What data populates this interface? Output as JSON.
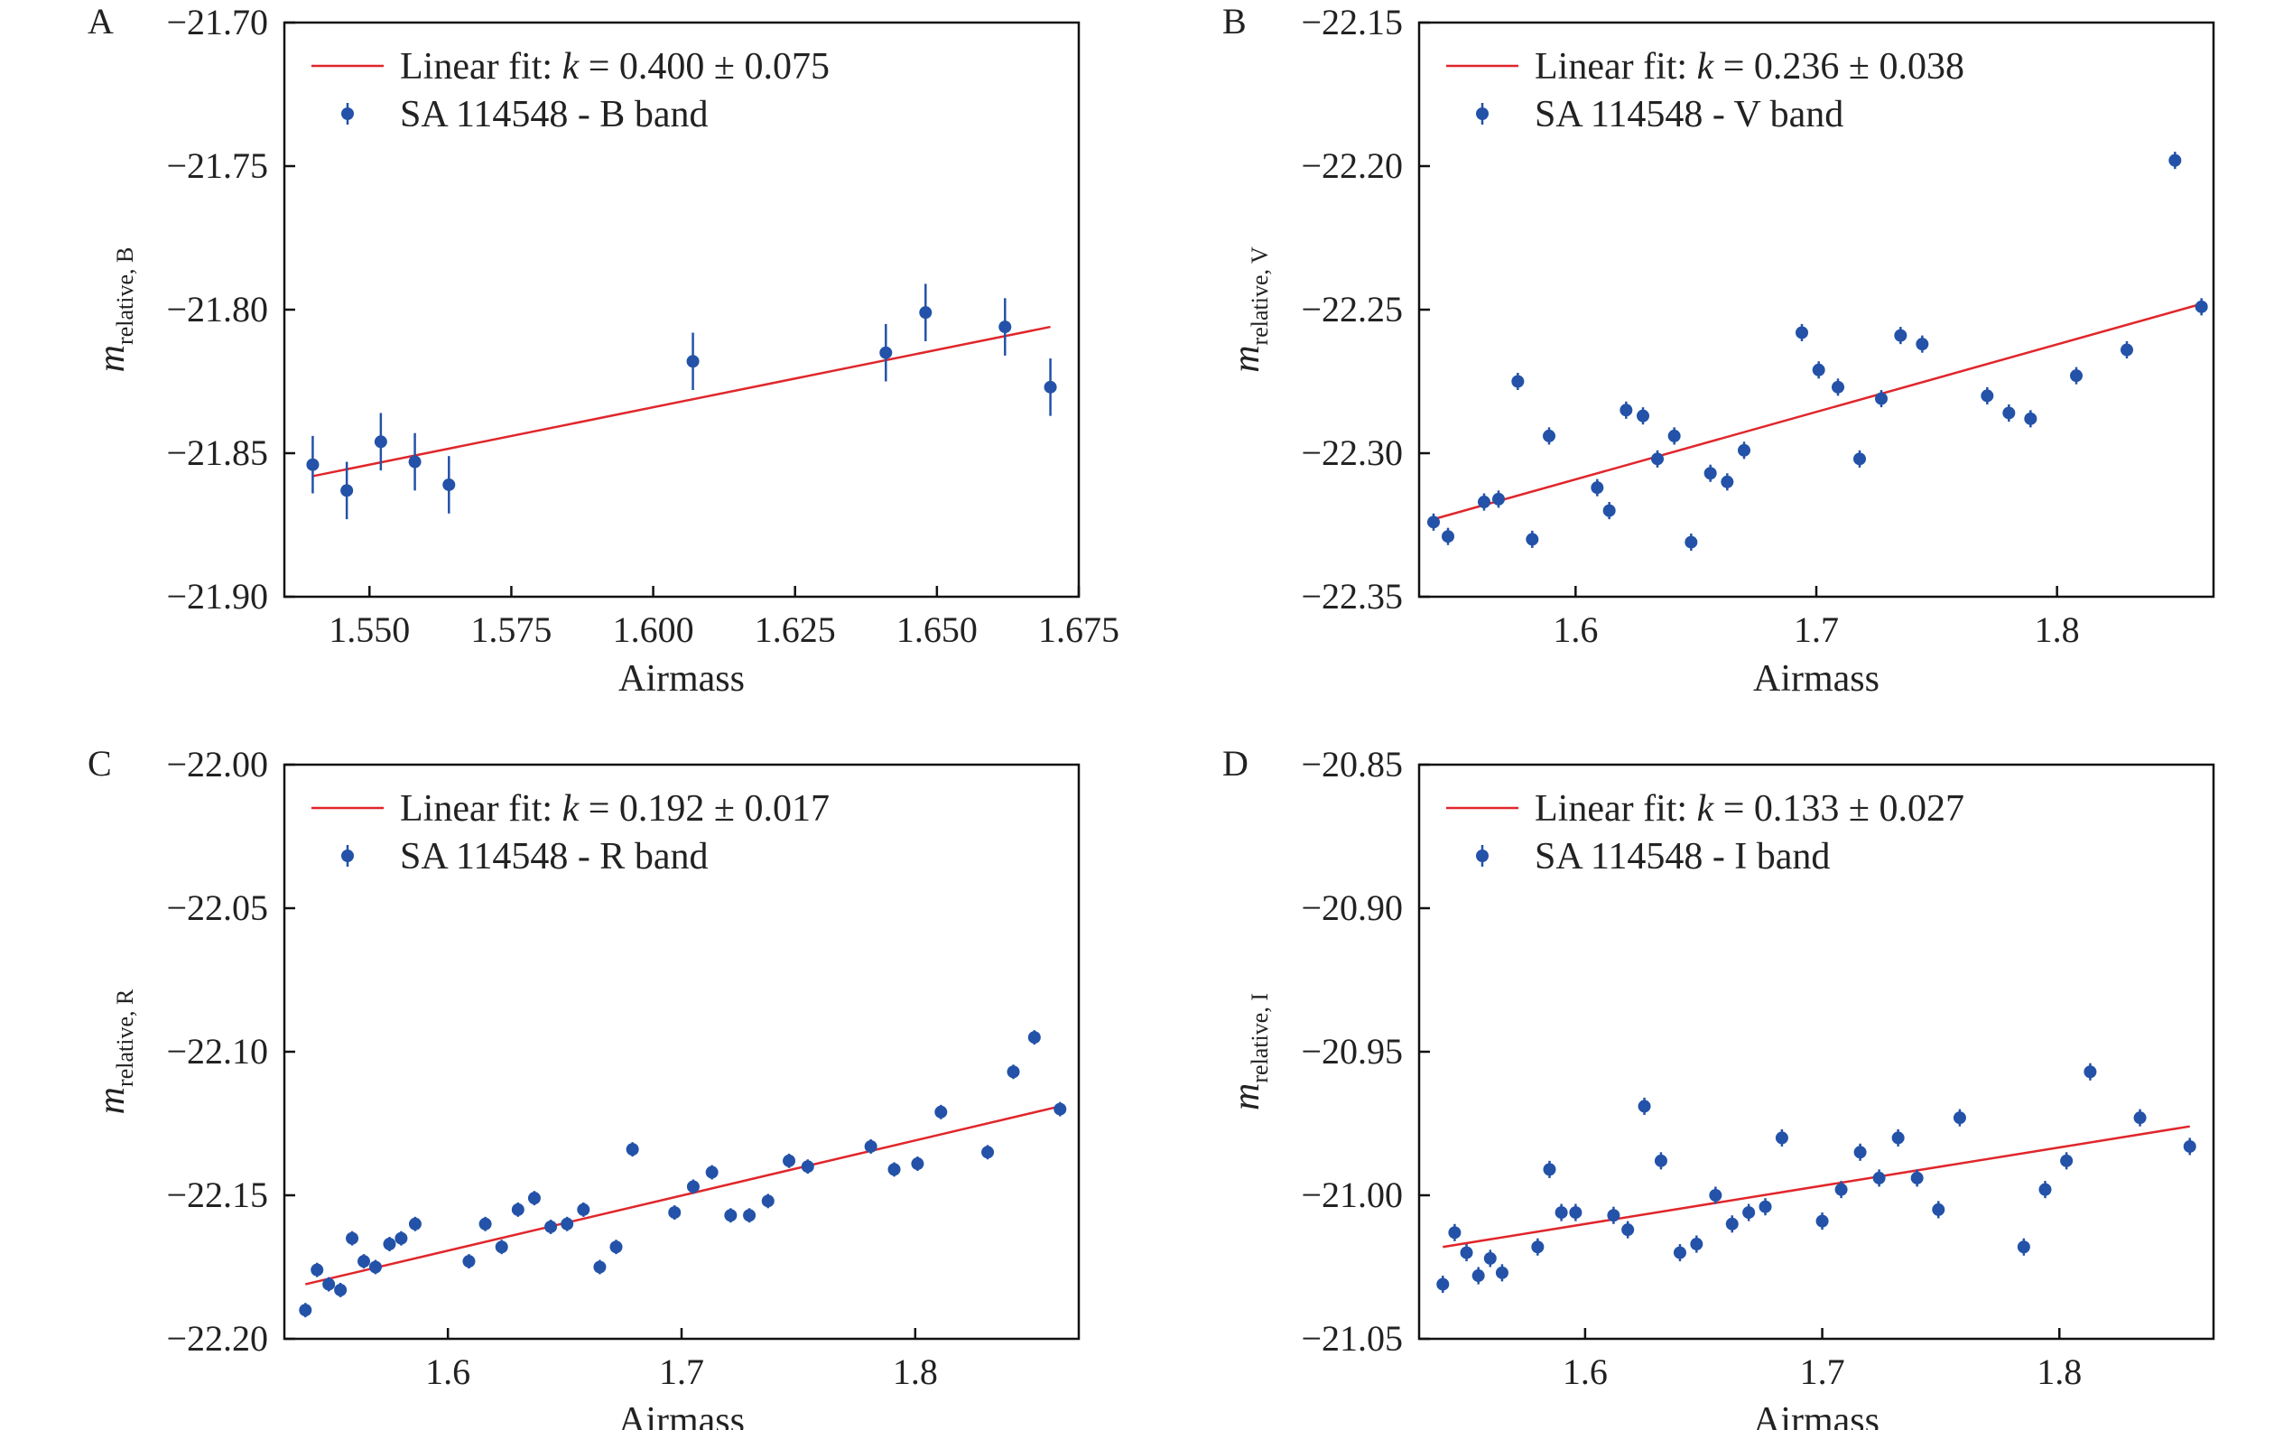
{
  "colors": {
    "points": "#2352a8",
    "fit": "#e0262b",
    "axis": "#111111",
    "text": "#222222"
  },
  "chart_data": [
    {
      "panel": "A",
      "type": "scatter",
      "xlabel": "Airmass",
      "ylabel_main": "m",
      "ylabel_sub": "relative, B",
      "xlim": [
        1.535,
        1.675
      ],
      "ylim": [
        -21.9,
        -21.7
      ],
      "xticks": [
        1.55,
        1.575,
        1.6,
        1.625,
        1.65,
        1.675
      ],
      "xtick_labels": [
        "1.550",
        "1.575",
        "1.600",
        "1.625",
        "1.650",
        "1.675"
      ],
      "yticks": [
        -21.7,
        -21.75,
        -21.8,
        -21.85,
        -21.9
      ],
      "ytick_labels": [
        "−21.70",
        "−21.75",
        "−21.80",
        "−21.85",
        "−21.90"
      ],
      "legend": {
        "fit_prefix": "Linear fit: ",
        "fit_var": "k",
        "fit_value": " = 0.400 ± 0.075",
        "series_label": "SA 114548 - B band",
        "position": "top-left"
      },
      "fit": {
        "slope": 0.4,
        "slope_err": 0.075,
        "x": [
          1.54,
          1.67
        ],
        "y": [
          -21.858,
          -21.806
        ]
      },
      "series": {
        "name": "SA 114548 - B band",
        "x": [
          1.54,
          1.546,
          1.552,
          1.558,
          1.564,
          1.607,
          1.641,
          1.648,
          1.662,
          1.67
        ],
        "y": [
          -21.854,
          -21.863,
          -21.846,
          -21.853,
          -21.861,
          -21.818,
          -21.815,
          -21.801,
          -21.806,
          -21.827
        ],
        "err": [
          0.01,
          0.01,
          0.01,
          0.01,
          0.01,
          0.01,
          0.01,
          0.01,
          0.01,
          0.01
        ]
      }
    },
    {
      "panel": "B",
      "type": "scatter",
      "xlabel": "Airmass",
      "ylabel_main": "m",
      "ylabel_sub": "relative, V",
      "xlim": [
        1.535,
        1.865
      ],
      "ylim": [
        -22.35,
        -22.15
      ],
      "xticks": [
        1.6,
        1.7,
        1.8
      ],
      "xtick_labels": [
        "1.6",
        "1.7",
        "1.8"
      ],
      "yticks": [
        -22.15,
        -22.2,
        -22.25,
        -22.3,
        -22.35
      ],
      "ytick_labels": [
        "−22.15",
        "−22.20",
        "−22.25",
        "−22.30",
        "−22.35"
      ],
      "legend": {
        "fit_prefix": "Linear fit: ",
        "fit_var": "k",
        "fit_value": " = 0.236 ± 0.038",
        "series_label": "SA 114548 - V band",
        "position": "top-left"
      },
      "fit": {
        "slope": 0.236,
        "slope_err": 0.038,
        "x": [
          1.541,
          1.86
        ],
        "y": [
          -22.323,
          -22.248
        ]
      },
      "series": {
        "name": "SA 114548 - V band",
        "x": [
          1.541,
          1.547,
          1.562,
          1.568,
          1.576,
          1.582,
          1.589,
          1.609,
          1.614,
          1.621,
          1.628,
          1.634,
          1.641,
          1.648,
          1.656,
          1.663,
          1.67,
          1.694,
          1.701,
          1.709,
          1.718,
          1.727,
          1.735,
          1.744,
          1.771,
          1.78,
          1.789,
          1.808,
          1.829,
          1.849,
          1.86
        ],
        "y": [
          -22.324,
          -22.329,
          -22.317,
          -22.316,
          -22.275,
          -22.33,
          -22.294,
          -22.312,
          -22.32,
          -22.285,
          -22.287,
          -22.302,
          -22.294,
          -22.331,
          -22.307,
          -22.31,
          -22.299,
          -22.258,
          -22.271,
          -22.277,
          -22.302,
          -22.281,
          -22.259,
          -22.262,
          -22.28,
          -22.286,
          -22.288,
          -22.273,
          -22.264,
          -22.198,
          -22.249
        ],
        "err": [
          0.003,
          0.003,
          0.003,
          0.003,
          0.003,
          0.003,
          0.003,
          0.003,
          0.003,
          0.003,
          0.003,
          0.003,
          0.003,
          0.003,
          0.003,
          0.003,
          0.003,
          0.003,
          0.003,
          0.003,
          0.003,
          0.003,
          0.003,
          0.003,
          0.003,
          0.003,
          0.003,
          0.003,
          0.003,
          0.003,
          0.003
        ]
      }
    },
    {
      "panel": "C",
      "type": "scatter",
      "xlabel": "Airmass",
      "ylabel_main": "m",
      "ylabel_sub": "relative, R",
      "xlim": [
        1.53,
        1.87
      ],
      "ylim": [
        -22.2,
        -22.0
      ],
      "xticks": [
        1.6,
        1.7,
        1.8
      ],
      "xtick_labels": [
        "1.6",
        "1.7",
        "1.8"
      ],
      "yticks": [
        -22.0,
        -22.05,
        -22.1,
        -22.15,
        -22.2
      ],
      "ytick_labels": [
        "−22.00",
        "−22.05",
        "−22.10",
        "−22.15",
        "−22.20"
      ],
      "legend": {
        "fit_prefix": "Linear fit: ",
        "fit_var": "k",
        "fit_value": " = 0.192 ± 0.017",
        "series_label": "SA 114548 - R band",
        "position": "top-left"
      },
      "fit": {
        "slope": 0.192,
        "slope_err": 0.017,
        "x": [
          1.539,
          1.862
        ],
        "y": [
          -22.181,
          -22.119
        ]
      },
      "series": {
        "name": "SA 114548 - R band",
        "x": [
          1.539,
          1.544,
          1.549,
          1.554,
          1.559,
          1.564,
          1.569,
          1.575,
          1.58,
          1.586,
          1.609,
          1.616,
          1.623,
          1.63,
          1.637,
          1.644,
          1.651,
          1.658,
          1.665,
          1.672,
          1.679,
          1.697,
          1.705,
          1.713,
          1.721,
          1.729,
          1.737,
          1.746,
          1.754,
          1.781,
          1.791,
          1.801,
          1.811,
          1.831,
          1.842,
          1.851,
          1.862
        ],
        "y": [
          -22.19,
          -22.176,
          -22.181,
          -22.183,
          -22.165,
          -22.173,
          -22.175,
          -22.167,
          -22.165,
          -22.16,
          -22.173,
          -22.16,
          -22.168,
          -22.155,
          -22.151,
          -22.161,
          -22.16,
          -22.155,
          -22.175,
          -22.168,
          -22.134,
          -22.156,
          -22.147,
          -22.142,
          -22.157,
          -22.157,
          -22.152,
          -22.138,
          -22.14,
          -22.133,
          -22.141,
          -22.139,
          -22.121,
          -22.135,
          -22.107,
          -22.095,
          -22.12
        ],
        "err": [
          0.0025,
          0.0025,
          0.0025,
          0.0025,
          0.0025,
          0.0025,
          0.0025,
          0.0025,
          0.0025,
          0.0025,
          0.0025,
          0.0025,
          0.0025,
          0.0025,
          0.0025,
          0.0025,
          0.0025,
          0.0025,
          0.0025,
          0.0025,
          0.0025,
          0.0025,
          0.0025,
          0.0025,
          0.0025,
          0.0025,
          0.0025,
          0.0025,
          0.0025,
          0.0025,
          0.0025,
          0.0025,
          0.0025,
          0.0025,
          0.0025,
          0.0025,
          0.0025
        ]
      }
    },
    {
      "panel": "D",
      "type": "scatter",
      "xlabel": "Airmass",
      "ylabel_main": "m",
      "ylabel_sub": "relative, I",
      "xlim": [
        1.53,
        1.865
      ],
      "ylim": [
        -21.05,
        -20.85
      ],
      "xticks": [
        1.6,
        1.7,
        1.8
      ],
      "xtick_labels": [
        "1.6",
        "1.7",
        "1.8"
      ],
      "yticks": [
        -20.85,
        -20.9,
        -20.95,
        -21.0,
        -21.05
      ],
      "ytick_labels": [
        "−20.85",
        "−20.90",
        "−20.95",
        "−21.00",
        "−21.05"
      ],
      "legend": {
        "fit_prefix": "Linear fit: ",
        "fit_var": "k",
        "fit_value": " = 0.133 ± 0.027",
        "series_label": "SA 114548 - I band",
        "position": "top-left"
      },
      "fit": {
        "slope": 0.133,
        "slope_err": 0.027,
        "x": [
          1.54,
          1.855
        ],
        "y": [
          -21.018,
          -20.976
        ]
      },
      "series": {
        "name": "SA 114548 - I band",
        "x": [
          1.54,
          1.545,
          1.55,
          1.555,
          1.56,
          1.565,
          1.58,
          1.585,
          1.59,
          1.596,
          1.612,
          1.618,
          1.625,
          1.632,
          1.64,
          1.647,
          1.655,
          1.662,
          1.669,
          1.676,
          1.683,
          1.7,
          1.708,
          1.716,
          1.724,
          1.732,
          1.74,
          1.749,
          1.758,
          1.785,
          1.794,
          1.803,
          1.813,
          1.834,
          1.855
        ],
        "y": [
          -21.031,
          -21.013,
          -21.02,
          -21.028,
          -21.022,
          -21.027,
          -21.018,
          -20.991,
          -21.006,
          -21.006,
          -21.007,
          -21.012,
          -20.969,
          -20.988,
          -21.02,
          -21.017,
          -21.0,
          -21.01,
          -21.006,
          -21.004,
          -20.98,
          -21.009,
          -20.998,
          -20.985,
          -20.994,
          -20.98,
          -20.994,
          -21.005,
          -20.973,
          -21.018,
          -20.998,
          -20.988,
          -20.957,
          -20.973,
          -20.983
        ],
        "err": [
          0.003,
          0.003,
          0.003,
          0.003,
          0.003,
          0.003,
          0.003,
          0.003,
          0.003,
          0.003,
          0.003,
          0.003,
          0.003,
          0.003,
          0.003,
          0.003,
          0.003,
          0.003,
          0.003,
          0.003,
          0.003,
          0.003,
          0.003,
          0.003,
          0.003,
          0.003,
          0.003,
          0.003,
          0.003,
          0.003,
          0.003,
          0.003,
          0.003,
          0.003,
          0.003
        ]
      }
    }
  ]
}
